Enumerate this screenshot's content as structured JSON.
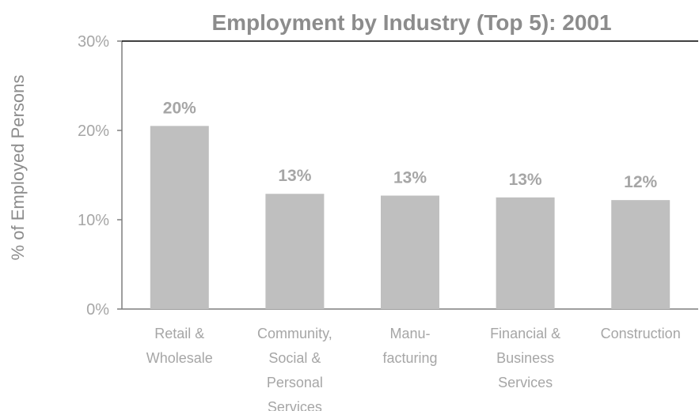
{
  "chart_data": {
    "type": "bar",
    "title": "Employment by Industry (Top 5):  2001",
    "xlabel": "",
    "ylabel": "% of Employed Persons",
    "ylim": [
      0,
      30
    ],
    "yticks": [
      "0%",
      "10%",
      "20%",
      "30%"
    ],
    "categories": [
      [
        "Retail &",
        "Wholesale"
      ],
      [
        "Community,",
        "Social &",
        "Personal",
        "Services"
      ],
      [
        "Manu-",
        "facturing"
      ],
      [
        "Financial &",
        "Business",
        "Services"
      ],
      [
        "Construction"
      ]
    ],
    "values": [
      20.5,
      12.9,
      12.7,
      12.5,
      12.2
    ],
    "data_labels": [
      "20%",
      "13%",
      "13%",
      "13%",
      "12%"
    ],
    "bar_color": "#bfbfbf",
    "axis_color": "#7f7f7f",
    "grid": false,
    "legend": "none"
  }
}
